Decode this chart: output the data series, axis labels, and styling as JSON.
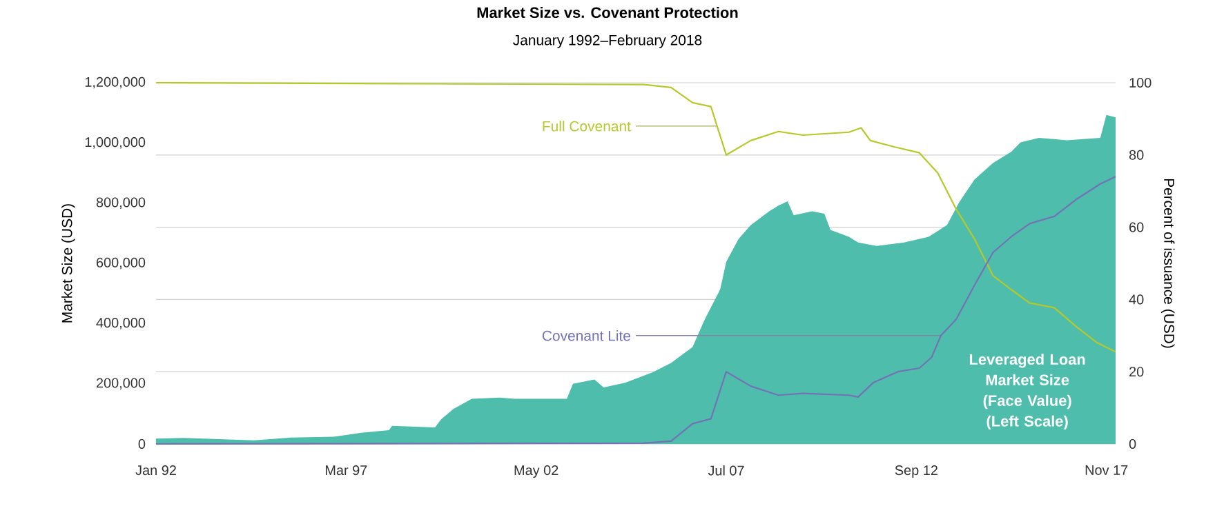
{
  "chart_data": {
    "type": "area",
    "title": "Market Size  vs. Covenant Protection",
    "subtitle": "January 1992–February 2018",
    "ylabel": "Market Size (USD)",
    "y2label": "Percent of issuance (USD)",
    "xlim": [
      "1992-01",
      "2018-02"
    ],
    "xticks": [
      {
        "value": "1992-01",
        "label": "Jan 92"
      },
      {
        "value": "1997-03",
        "label": "Mar 97"
      },
      {
        "value": "2002-05",
        "label": "May 02"
      },
      {
        "value": "2007-07",
        "label": "Jul 07"
      },
      {
        "value": "2012-09",
        "label": "Sep 12"
      },
      {
        "value": "2017-11",
        "label": "Nov 17"
      }
    ],
    "ylim": [
      0,
      1200000
    ],
    "yticks": [
      0,
      {
        "value": 200000,
        "label": "200,000"
      },
      {
        "value": 400000,
        "label": "400,000"
      },
      {
        "value": 600000,
        "label": "600,000"
      },
      {
        "value": 800000,
        "label": "800,000"
      },
      {
        "value": 1000000,
        "label": "1,000,000"
      },
      {
        "value": 1200000,
        "label": "1,200,000"
      }
    ],
    "y2lim": [
      0,
      100
    ],
    "y2ticks": [
      0,
      20,
      40,
      60,
      80,
      100
    ],
    "grid": "y2",
    "series": [
      {
        "name": "Leveraged Loan Market Size (Face Value) (Left Scale)",
        "color": "#4fbdac",
        "x": [
          "1992-01",
          "1992-10",
          "1994-09",
          "1995-09",
          "1996-11",
          "1997-08",
          "1998-05",
          "1998-06",
          "1999-08",
          "1999-10",
          "2000-02",
          "2000-08",
          "2001-05",
          "2001-10",
          "2003-03",
          "2003-05",
          "2003-12",
          "2004-03",
          "2004-10",
          "2005-07",
          "2006-01",
          "2006-08",
          "2006-12",
          "2007-05",
          "2007-07",
          "2007-11",
          "2008-03",
          "2008-09",
          "2008-12",
          "2009-03",
          "2009-05",
          "2009-11",
          "2010-03",
          "2010-05",
          "2010-11",
          "2011-02",
          "2011-08",
          "2012-05",
          "2013-01",
          "2013-07",
          "2013-11",
          "2014-04",
          "2014-10",
          "2015-04",
          "2015-07",
          "2016-01",
          "2016-10",
          "2017-09",
          "2017-11",
          "2018-02"
        ],
        "values": [
          18000,
          20000,
          12000,
          21000,
          24000,
          37000,
          46000,
          60000,
          55000,
          82000,
          116000,
          150000,
          154000,
          150000,
          150000,
          200000,
          214000,
          188000,
          203000,
          238000,
          269000,
          322000,
          414000,
          513000,
          605000,
          681000,
          727000,
          773000,
          792000,
          806000,
          760000,
          773000,
          765000,
          711000,
          688000,
          669000,
          658000,
          669000,
          688000,
          727000,
          803000,
          879000,
          933000,
          971000,
          1002000,
          1017000,
          1009000,
          1017000,
          1093000,
          1085000
        ]
      },
      {
        "name": "Full Covenant",
        "type": "line",
        "axis": "y2",
        "color": "#b5c92a",
        "x": [
          "1992-01",
          "2005-04",
          "2006-01",
          "2006-08",
          "2007-02",
          "2007-04",
          "2007-07",
          "2008-03",
          "2008-12",
          "2009-08",
          "2010-11",
          "2011-03",
          "2011-06",
          "2012-02",
          "2012-10",
          "2013-04",
          "2013-10",
          "2014-04",
          "2014-10",
          "2015-04",
          "2015-10",
          "2016-06",
          "2017-01",
          "2017-08",
          "2018-02"
        ],
        "values": [
          100,
          99.5,
          98.7,
          94.5,
          93.4,
          88,
          80,
          84,
          86.5,
          85.5,
          86.3,
          87.5,
          84,
          82.2,
          80.6,
          75,
          65,
          56.7,
          46.6,
          42.7,
          39,
          37.7,
          32.6,
          28,
          25.5
        ]
      },
      {
        "name": "Covenant Lite",
        "type": "line",
        "axis": "y2",
        "color": "#7272b4",
        "x": [
          "1992-01",
          "2005-04",
          "2006-01",
          "2006-08",
          "2007-02",
          "2007-07",
          "2008-03",
          "2008-12",
          "2009-08",
          "2010-11",
          "2011-02",
          "2011-07",
          "2012-03",
          "2012-10",
          "2013-02",
          "2013-05",
          "2013-10",
          "2014-04",
          "2014-10",
          "2015-04",
          "2015-10",
          "2016-06",
          "2017-01",
          "2017-09",
          "2018-02"
        ],
        "values": [
          0,
          0.2,
          0.8,
          5.6,
          7,
          20,
          16,
          13.5,
          14,
          13.5,
          13,
          17,
          20,
          21,
          24,
          30,
          34.5,
          44,
          53,
          57.4,
          61,
          63,
          67.6,
          72,
          74
        ]
      }
    ]
  }
}
